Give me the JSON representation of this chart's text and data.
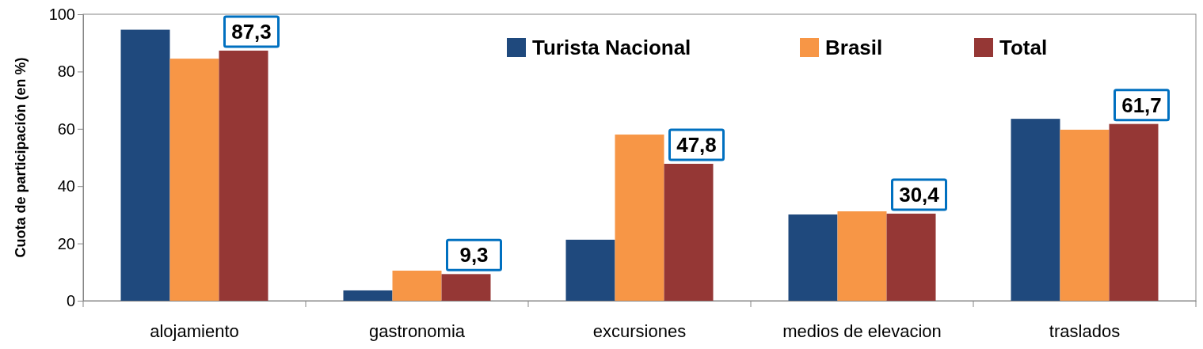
{
  "chart_data": {
    "type": "bar",
    "ylabel": "Cuota de participación (en %)",
    "categories": [
      "alojamiento",
      "gastronomia",
      "excursiones",
      "medios de elevacion",
      "traslados"
    ],
    "series": [
      {
        "name": "Turista Nacional",
        "color": "#1f497d",
        "values": [
          94.6,
          3.6,
          21.3,
          30.1,
          63.5
        ]
      },
      {
        "name": "Brasil",
        "color": "#f79646",
        "values": [
          84.5,
          10.5,
          58.0,
          31.2,
          59.7
        ]
      },
      {
        "name": "Total",
        "color": "#953735",
        "values": [
          87.3,
          9.3,
          47.8,
          30.4,
          61.7
        ],
        "value_labels": [
          "87,3",
          "9,3",
          "47,8",
          "30,4",
          "61,7"
        ]
      }
    ],
    "ylim": [
      0,
      100
    ],
    "yticks": [
      0,
      20,
      40,
      60,
      80,
      100
    ],
    "grid": false,
    "legend": "top right"
  }
}
